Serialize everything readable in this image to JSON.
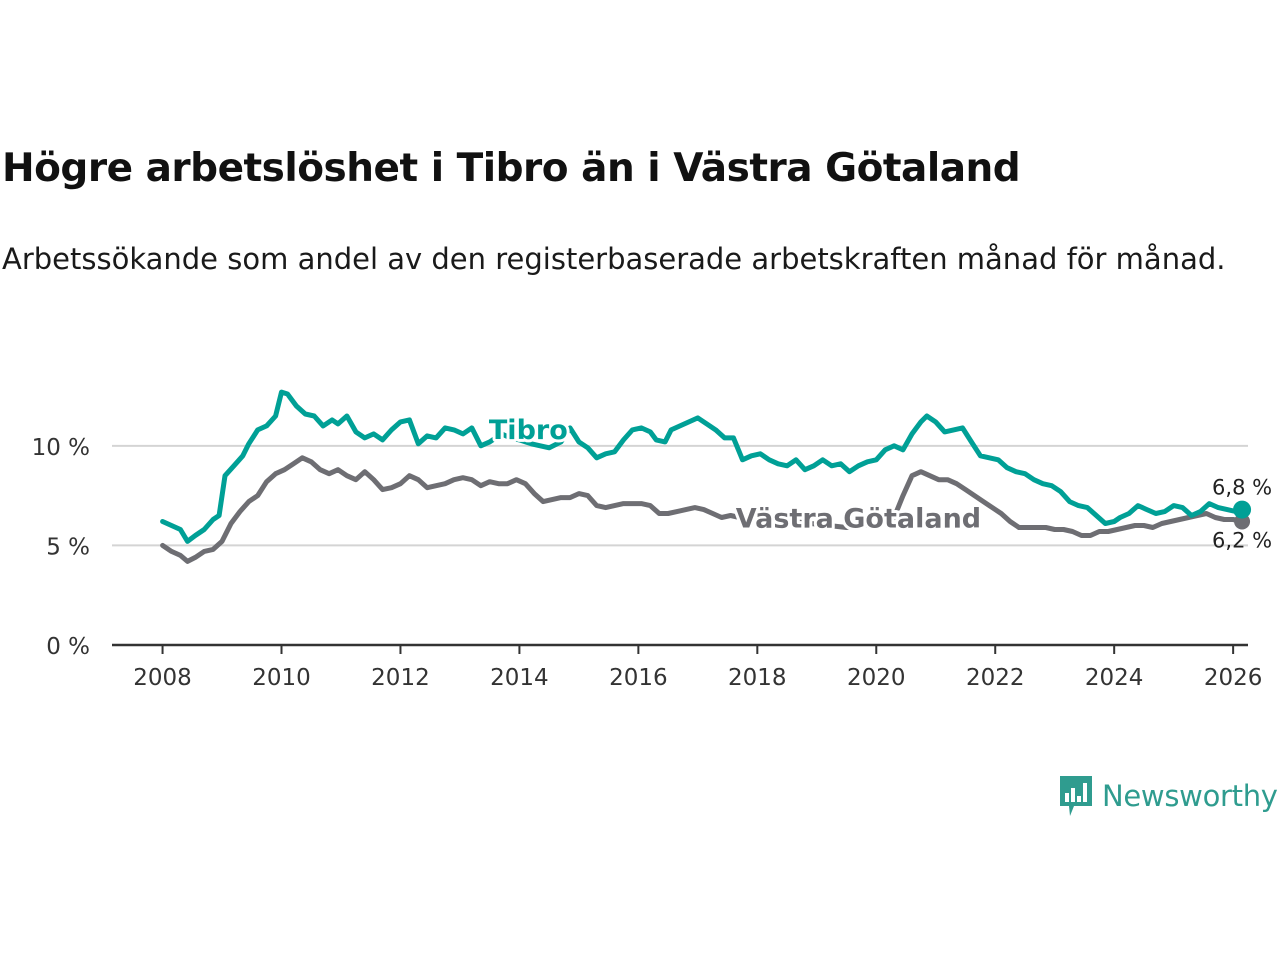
{
  "title": "Högre arbetslöshet i Tibro än i Västra Götaland",
  "subtitle": "Arbetssökande som andel av den registerbaserade arbetskraften månad för månad.",
  "brand": {
    "name": "Newsworthy",
    "color": "#2f9c8f"
  },
  "chart_data": {
    "type": "line",
    "x_tick_labels": [
      "2008",
      "2010",
      "2012",
      "2014",
      "2016",
      "2018",
      "2020",
      "2022",
      "2024",
      "2026"
    ],
    "y_tick_labels": [
      "0 %",
      "5 %",
      "10 %"
    ],
    "y_ticks": [
      0,
      5,
      10
    ],
    "ylim": [
      0,
      12
    ],
    "xlim": [
      2007.15,
      2026.25
    ],
    "grid": true,
    "series": [
      {
        "name": "Tibro",
        "color": "#00a096",
        "end_label": "6,8 %",
        "end_value": 6.8,
        "points": [
          [
            2008.0,
            6.2
          ],
          [
            2008.15,
            6.0
          ],
          [
            2008.3,
            5.8
          ],
          [
            2008.42,
            5.2
          ],
          [
            2008.55,
            5.5
          ],
          [
            2008.7,
            5.8
          ],
          [
            2008.85,
            6.3
          ],
          [
            2008.95,
            6.5
          ],
          [
            2009.05,
            8.5
          ],
          [
            2009.2,
            9.0
          ],
          [
            2009.35,
            9.5
          ],
          [
            2009.45,
            10.1
          ],
          [
            2009.6,
            10.8
          ],
          [
            2009.75,
            11.0
          ],
          [
            2009.9,
            11.5
          ],
          [
            2010.0,
            12.7
          ],
          [
            2010.1,
            12.6
          ],
          [
            2010.25,
            12.0
          ],
          [
            2010.4,
            11.6
          ],
          [
            2010.55,
            11.5
          ],
          [
            2010.7,
            11.0
          ],
          [
            2010.85,
            11.3
          ],
          [
            2010.95,
            11.1
          ],
          [
            2011.1,
            11.5
          ],
          [
            2011.25,
            10.7
          ],
          [
            2011.4,
            10.4
          ],
          [
            2011.55,
            10.6
          ],
          [
            2011.7,
            10.3
          ],
          [
            2011.85,
            10.8
          ],
          [
            2012.0,
            11.2
          ],
          [
            2012.15,
            11.3
          ],
          [
            2012.3,
            10.1
          ],
          [
            2012.45,
            10.5
          ],
          [
            2012.6,
            10.4
          ],
          [
            2012.75,
            10.9
          ],
          [
            2012.9,
            10.8
          ],
          [
            2013.05,
            10.6
          ],
          [
            2013.2,
            10.9
          ],
          [
            2013.35,
            10.0
          ],
          [
            2013.5,
            10.2
          ],
          [
            2013.7,
            10.6
          ],
          [
            2013.85,
            10.4
          ],
          [
            2014.0,
            10.3
          ],
          [
            2014.2,
            10.1
          ],
          [
            2014.35,
            10.0
          ],
          [
            2014.5,
            9.9
          ],
          [
            2014.7,
            10.2
          ],
          [
            2014.85,
            10.9
          ],
          [
            2015.0,
            10.2
          ],
          [
            2015.15,
            9.9
          ],
          [
            2015.3,
            9.4
          ],
          [
            2015.45,
            9.6
          ],
          [
            2015.6,
            9.7
          ],
          [
            2015.75,
            10.3
          ],
          [
            2015.9,
            10.8
          ],
          [
            2016.05,
            10.9
          ],
          [
            2016.2,
            10.7
          ],
          [
            2016.3,
            10.3
          ],
          [
            2016.45,
            10.2
          ],
          [
            2016.55,
            10.8
          ],
          [
            2016.7,
            11.0
          ],
          [
            2016.85,
            11.2
          ],
          [
            2017.0,
            11.4
          ],
          [
            2017.15,
            11.1
          ],
          [
            2017.3,
            10.8
          ],
          [
            2017.45,
            10.4
          ],
          [
            2017.6,
            10.4
          ],
          [
            2017.75,
            9.3
          ],
          [
            2017.9,
            9.5
          ],
          [
            2018.05,
            9.6
          ],
          [
            2018.2,
            9.3
          ],
          [
            2018.35,
            9.1
          ],
          [
            2018.5,
            9.0
          ],
          [
            2018.65,
            9.3
          ],
          [
            2018.8,
            8.8
          ],
          [
            2018.95,
            9.0
          ],
          [
            2019.1,
            9.3
          ],
          [
            2019.25,
            9.0
          ],
          [
            2019.4,
            9.1
          ],
          [
            2019.55,
            8.7
          ],
          [
            2019.7,
            9.0
          ],
          [
            2019.85,
            9.2
          ],
          [
            2020.0,
            9.3
          ],
          [
            2020.15,
            9.8
          ],
          [
            2020.3,
            10.0
          ],
          [
            2020.45,
            9.8
          ],
          [
            2020.6,
            10.6
          ],
          [
            2020.75,
            11.2
          ],
          [
            2020.85,
            11.5
          ],
          [
            2021.0,
            11.2
          ],
          [
            2021.15,
            10.7
          ],
          [
            2021.3,
            10.8
          ],
          [
            2021.45,
            10.9
          ],
          [
            2021.6,
            10.2
          ],
          [
            2021.75,
            9.5
          ],
          [
            2021.9,
            9.4
          ],
          [
            2022.05,
            9.3
          ],
          [
            2022.2,
            8.9
          ],
          [
            2022.35,
            8.7
          ],
          [
            2022.5,
            8.6
          ],
          [
            2022.65,
            8.3
          ],
          [
            2022.8,
            8.1
          ],
          [
            2022.95,
            8.0
          ],
          [
            2023.1,
            7.7
          ],
          [
            2023.25,
            7.2
          ],
          [
            2023.4,
            7.0
          ],
          [
            2023.55,
            6.9
          ],
          [
            2023.7,
            6.5
          ],
          [
            2023.85,
            6.1
          ],
          [
            2024.0,
            6.2
          ],
          [
            2024.1,
            6.4
          ],
          [
            2024.25,
            6.6
          ],
          [
            2024.4,
            7.0
          ],
          [
            2024.55,
            6.8
          ],
          [
            2024.7,
            6.6
          ],
          [
            2024.85,
            6.7
          ],
          [
            2025.0,
            7.0
          ],
          [
            2025.15,
            6.9
          ],
          [
            2025.3,
            6.5
          ],
          [
            2025.45,
            6.7
          ],
          [
            2025.6,
            7.1
          ],
          [
            2025.75,
            6.9
          ],
          [
            2025.9,
            6.8
          ],
          [
            2026.05,
            6.7
          ],
          [
            2026.15,
            6.8
          ]
        ]
      },
      {
        "name": "Västra Götaland",
        "color": "#6e6e73",
        "end_label": "6,2 %",
        "end_value": 6.2,
        "points": [
          [
            2008.0,
            5.0
          ],
          [
            2008.15,
            4.7
          ],
          [
            2008.3,
            4.5
          ],
          [
            2008.42,
            4.2
          ],
          [
            2008.55,
            4.4
          ],
          [
            2008.7,
            4.7
          ],
          [
            2008.85,
            4.8
          ],
          [
            2009.0,
            5.2
          ],
          [
            2009.15,
            6.1
          ],
          [
            2009.3,
            6.7
          ],
          [
            2009.45,
            7.2
          ],
          [
            2009.6,
            7.5
          ],
          [
            2009.75,
            8.2
          ],
          [
            2009.9,
            8.6
          ],
          [
            2010.05,
            8.8
          ],
          [
            2010.2,
            9.1
          ],
          [
            2010.35,
            9.4
          ],
          [
            2010.5,
            9.2
          ],
          [
            2010.65,
            8.8
          ],
          [
            2010.8,
            8.6
          ],
          [
            2010.95,
            8.8
          ],
          [
            2011.1,
            8.5
          ],
          [
            2011.25,
            8.3
          ],
          [
            2011.4,
            8.7
          ],
          [
            2011.55,
            8.3
          ],
          [
            2011.7,
            7.8
          ],
          [
            2011.85,
            7.9
          ],
          [
            2012.0,
            8.1
          ],
          [
            2012.15,
            8.5
          ],
          [
            2012.3,
            8.3
          ],
          [
            2012.45,
            7.9
          ],
          [
            2012.6,
            8.0
          ],
          [
            2012.75,
            8.1
          ],
          [
            2012.9,
            8.3
          ],
          [
            2013.05,
            8.4
          ],
          [
            2013.2,
            8.3
          ],
          [
            2013.35,
            8.0
          ],
          [
            2013.5,
            8.2
          ],
          [
            2013.65,
            8.1
          ],
          [
            2013.8,
            8.1
          ],
          [
            2013.95,
            8.3
          ],
          [
            2014.1,
            8.1
          ],
          [
            2014.25,
            7.6
          ],
          [
            2014.4,
            7.2
          ],
          [
            2014.55,
            7.3
          ],
          [
            2014.7,
            7.4
          ],
          [
            2014.85,
            7.4
          ],
          [
            2015.0,
            7.6
          ],
          [
            2015.15,
            7.5
          ],
          [
            2015.3,
            7.0
          ],
          [
            2015.45,
            6.9
          ],
          [
            2015.6,
            7.0
          ],
          [
            2015.75,
            7.1
          ],
          [
            2015.9,
            7.1
          ],
          [
            2016.05,
            7.1
          ],
          [
            2016.2,
            7.0
          ],
          [
            2016.35,
            6.6
          ],
          [
            2016.5,
            6.6
          ],
          [
            2016.65,
            6.7
          ],
          [
            2016.8,
            6.8
          ],
          [
            2016.95,
            6.9
          ],
          [
            2017.1,
            6.8
          ],
          [
            2017.25,
            6.6
          ],
          [
            2017.4,
            6.4
          ],
          [
            2017.55,
            6.5
          ],
          [
            2017.7,
            6.4
          ],
          [
            2017.85,
            6.5
          ],
          [
            2018.0,
            6.4
          ],
          [
            2018.3,
            6.3
          ],
          [
            2018.6,
            6.2
          ],
          [
            2018.9,
            6.1
          ],
          [
            2019.2,
            6.0
          ],
          [
            2019.5,
            5.9
          ],
          [
            2019.8,
            6.0
          ],
          [
            2020.1,
            6.1
          ],
          [
            2020.3,
            6.4
          ],
          [
            2020.45,
            7.5
          ],
          [
            2020.6,
            8.5
          ],
          [
            2020.75,
            8.7
          ],
          [
            2020.9,
            8.5
          ],
          [
            2021.05,
            8.3
          ],
          [
            2021.2,
            8.3
          ],
          [
            2021.35,
            8.1
          ],
          [
            2021.5,
            7.8
          ],
          [
            2021.65,
            7.5
          ],
          [
            2021.8,
            7.2
          ],
          [
            2021.95,
            6.9
          ],
          [
            2022.1,
            6.6
          ],
          [
            2022.25,
            6.2
          ],
          [
            2022.4,
            5.9
          ],
          [
            2022.55,
            5.9
          ],
          [
            2022.7,
            5.9
          ],
          [
            2022.85,
            5.9
          ],
          [
            2023.0,
            5.8
          ],
          [
            2023.15,
            5.8
          ],
          [
            2023.3,
            5.7
          ],
          [
            2023.45,
            5.5
          ],
          [
            2023.6,
            5.5
          ],
          [
            2023.75,
            5.7
          ],
          [
            2023.9,
            5.7
          ],
          [
            2024.05,
            5.8
          ],
          [
            2024.2,
            5.9
          ],
          [
            2024.35,
            6.0
          ],
          [
            2024.5,
            6.0
          ],
          [
            2024.65,
            5.9
          ],
          [
            2024.8,
            6.1
          ],
          [
            2024.95,
            6.2
          ],
          [
            2025.1,
            6.3
          ],
          [
            2025.25,
            6.4
          ],
          [
            2025.4,
            6.5
          ],
          [
            2025.55,
            6.6
          ],
          [
            2025.7,
            6.4
          ],
          [
            2025.85,
            6.3
          ],
          [
            2026.0,
            6.3
          ],
          [
            2026.15,
            6.2
          ]
        ]
      }
    ]
  }
}
